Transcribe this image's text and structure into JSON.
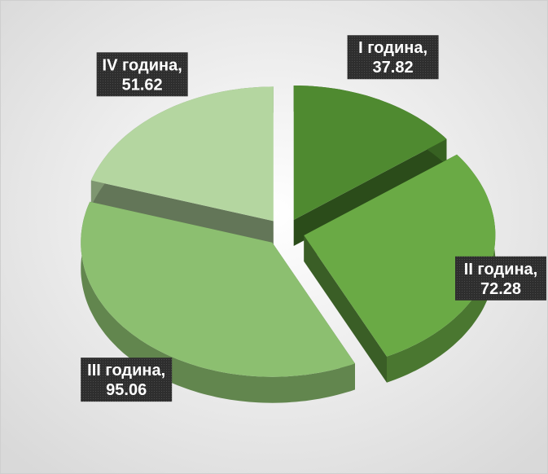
{
  "chart_data": {
    "type": "pie3d",
    "categories": [
      "I година",
      "II година",
      "III година",
      "IV година"
    ],
    "values": [
      37.82,
      72.28,
      95.06,
      51.62
    ],
    "label_separator": ",",
    "colors": [
      "#4f8a30",
      "#6aaa45",
      "#8cbf70",
      "#b4d6a0"
    ],
    "exploded": true
  }
}
